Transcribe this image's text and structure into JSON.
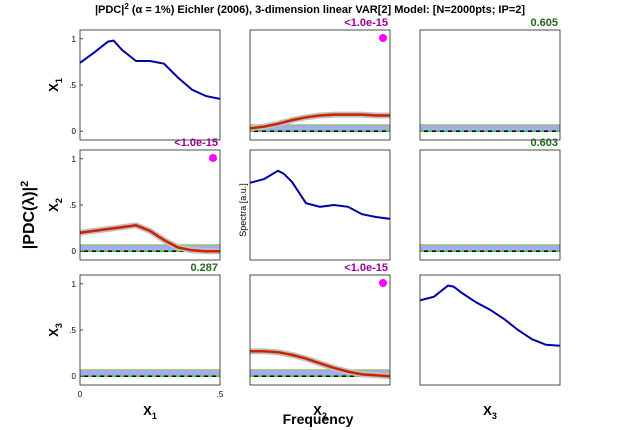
{
  "figure": {
    "title_prefix": "|PDC|",
    "title_exponent": "2",
    "title_rest": " (α = 1%) Eichler (2006), 3-dimension linear VAR[2] Model: [N=2000pts; IP=2]",
    "ylabel_main": "|PDC(λ)|",
    "ylabel_main_exponent": "2",
    "xlabel_main": "Frequency",
    "diag_ylabel": "Spectra [a.u.]",
    "var_names": [
      "X1",
      "X2",
      "X3"
    ],
    "var_letter": "X",
    "var_indices": [
      "1",
      "2",
      "3"
    ]
  },
  "colors": {
    "spectra": "#0000aa",
    "pdc": "#cc2200",
    "ci": "#c0c0c0",
    "threshold_band": "#a8a8ee",
    "threshold_line": "#88cc44",
    "zero_line": "#000000",
    "dash_green": "#22dd22",
    "pvalue_small": "#990099",
    "pvalue_large": "#226622",
    "dot": "#ff00ff"
  },
  "chart_data": {
    "type": "line",
    "x_range": [
      0,
      0.5
    ],
    "y_range": [
      0,
      1
    ],
    "xticks": [
      "0",
      ".5"
    ],
    "yticks": [
      "0",
      ".5",
      "1"
    ],
    "panels": [
      {
        "row": 1,
        "col": 1,
        "kind": "spectrum",
        "x": [
          0,
          0.05,
          0.1,
          0.12,
          0.15,
          0.2,
          0.25,
          0.3,
          0.35,
          0.4,
          0.45,
          0.5
        ],
        "y": [
          0.74,
          0.85,
          0.97,
          0.98,
          0.88,
          0.76,
          0.76,
          0.73,
          0.58,
          0.45,
          0.38,
          0.35
        ]
      },
      {
        "row": 1,
        "col": 2,
        "kind": "pdc",
        "pvalue": "<1.0e-15",
        "significant": true,
        "threshold": 0.07,
        "x": [
          0,
          0.05,
          0.1,
          0.15,
          0.2,
          0.25,
          0.3,
          0.35,
          0.4,
          0.45,
          0.5
        ],
        "y": [
          0.03,
          0.05,
          0.08,
          0.12,
          0.15,
          0.17,
          0.18,
          0.18,
          0.18,
          0.17,
          0.17
        ]
      },
      {
        "row": 1,
        "col": 3,
        "kind": "pdc",
        "pvalue": "0.605",
        "significant": false,
        "threshold": 0.07,
        "x": [
          0,
          0.5
        ],
        "y": [
          0,
          0
        ]
      },
      {
        "row": 2,
        "col": 1,
        "kind": "pdc",
        "pvalue": "<1.0e-15",
        "significant": true,
        "threshold": 0.07,
        "x": [
          0,
          0.05,
          0.1,
          0.15,
          0.2,
          0.25,
          0.3,
          0.35,
          0.4,
          0.45,
          0.5
        ],
        "y": [
          0.2,
          0.22,
          0.24,
          0.26,
          0.28,
          0.22,
          0.12,
          0.04,
          0.01,
          0,
          0
        ]
      },
      {
        "row": 2,
        "col": 2,
        "kind": "spectrum",
        "x": [
          0,
          0.05,
          0.1,
          0.12,
          0.15,
          0.2,
          0.25,
          0.3,
          0.35,
          0.4,
          0.45,
          0.5
        ],
        "y": [
          0.74,
          0.78,
          0.87,
          0.84,
          0.75,
          0.52,
          0.48,
          0.5,
          0.48,
          0.4,
          0.37,
          0.35
        ]
      },
      {
        "row": 2,
        "col": 3,
        "kind": "pdc",
        "pvalue": "0.603",
        "significant": false,
        "threshold": 0.07,
        "x": [
          0,
          0.5
        ],
        "y": [
          0,
          0
        ]
      },
      {
        "row": 3,
        "col": 1,
        "kind": "pdc",
        "pvalue": "0.287",
        "significant": false,
        "threshold": 0.07,
        "x": [
          0,
          0.5
        ],
        "y": [
          0,
          0
        ]
      },
      {
        "row": 3,
        "col": 2,
        "kind": "pdc",
        "pvalue": "<1.0e-15",
        "significant": true,
        "threshold": 0.07,
        "x": [
          0,
          0.05,
          0.1,
          0.15,
          0.2,
          0.25,
          0.3,
          0.35,
          0.4,
          0.45,
          0.5
        ],
        "y": [
          0.27,
          0.27,
          0.26,
          0.23,
          0.19,
          0.14,
          0.09,
          0.05,
          0.02,
          0.01,
          0
        ]
      },
      {
        "row": 3,
        "col": 3,
        "kind": "spectrum",
        "x": [
          0,
          0.05,
          0.1,
          0.12,
          0.15,
          0.2,
          0.25,
          0.3,
          0.35,
          0.4,
          0.45,
          0.5
        ],
        "y": [
          0.82,
          0.86,
          0.98,
          0.97,
          0.9,
          0.8,
          0.72,
          0.62,
          0.5,
          0.4,
          0.34,
          0.33
        ]
      }
    ]
  }
}
